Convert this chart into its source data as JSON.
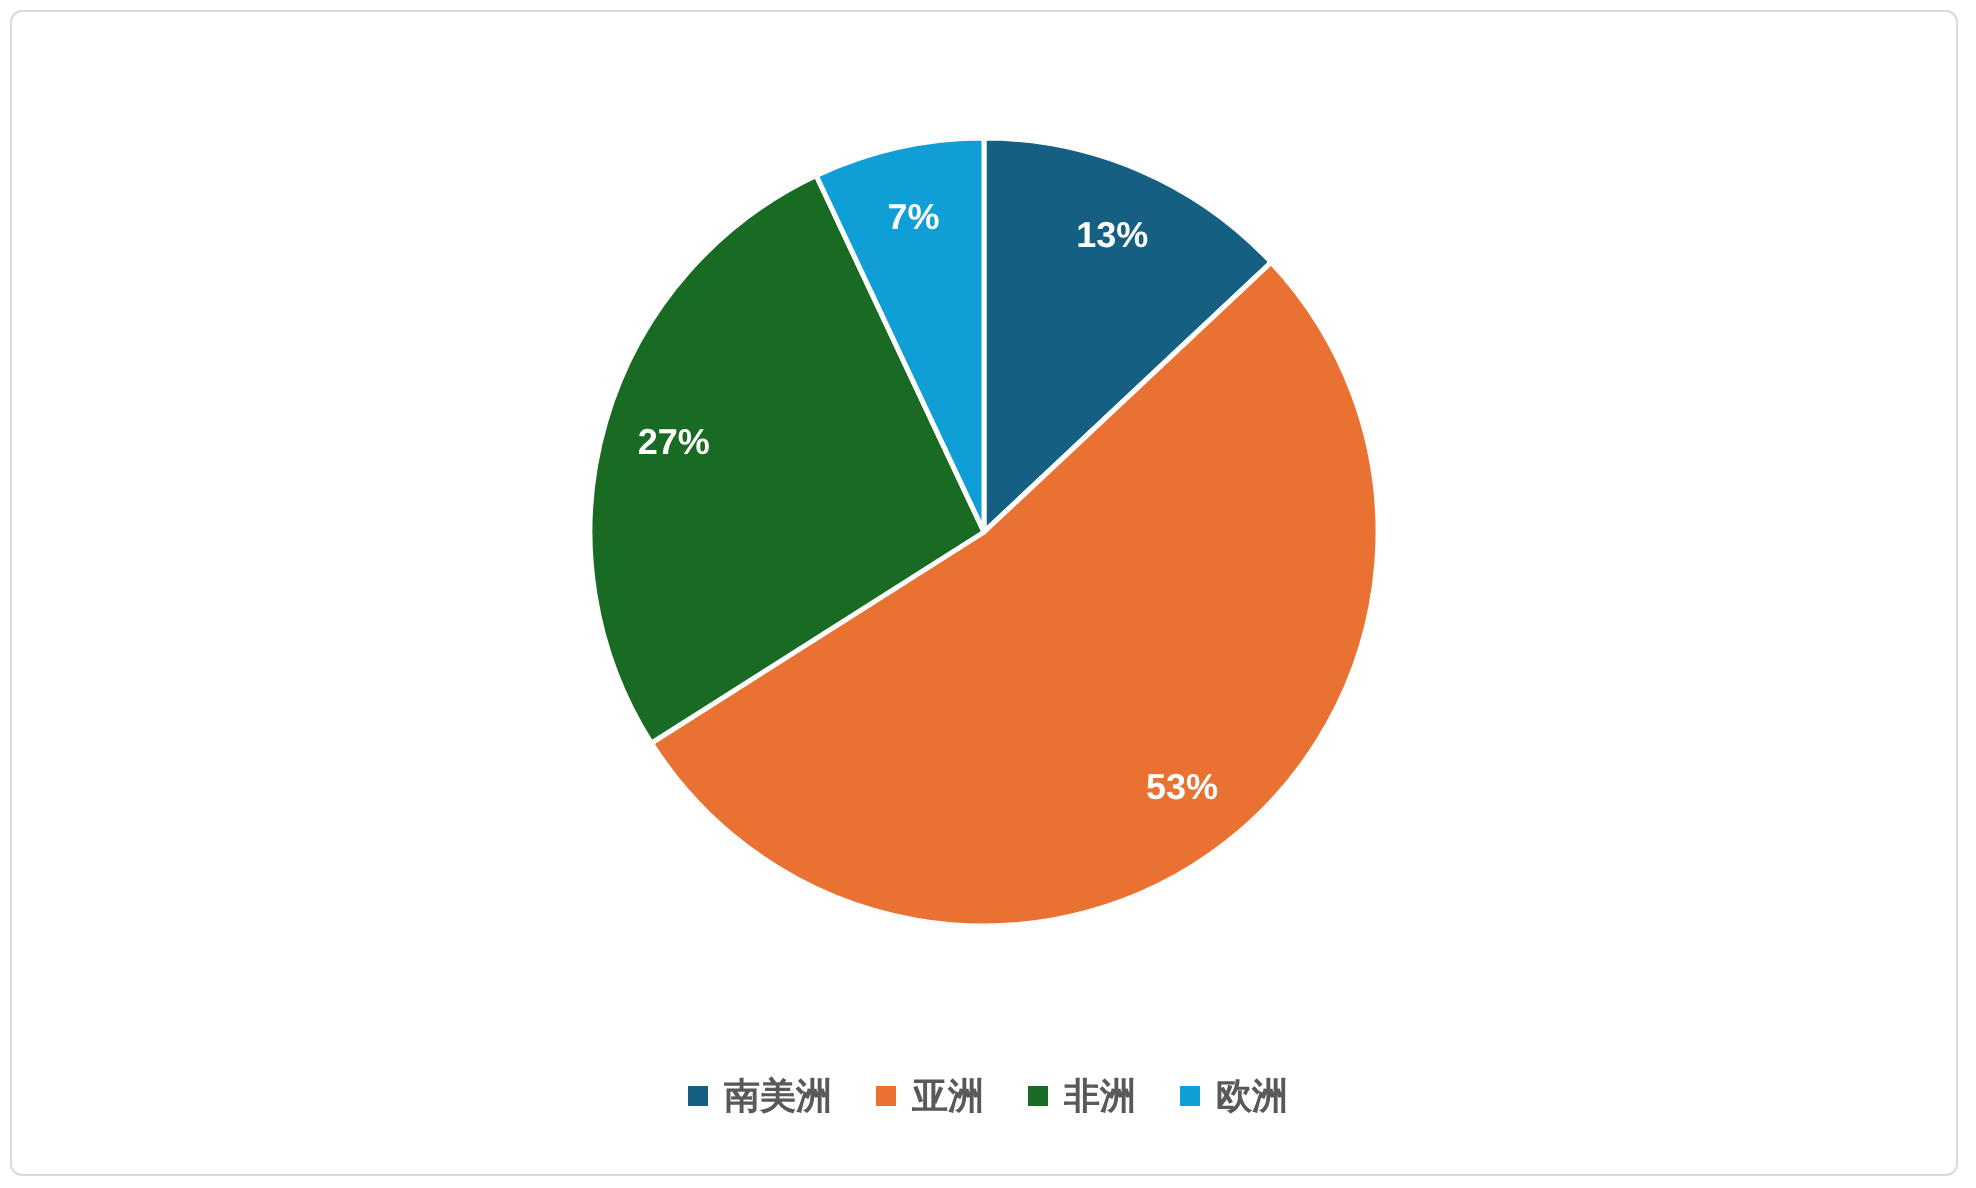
{
  "chart_data": {
    "type": "pie",
    "categories": [
      "南美洲",
      "亚洲",
      "非洲",
      "欧洲"
    ],
    "values": [
      13,
      53,
      27,
      7
    ],
    "colors": [
      "#156082",
      "#e97132",
      "#196b24",
      "#0f9ed5"
    ],
    "value_labels": [
      "13%",
      "53%",
      "27%",
      "7%"
    ],
    "legend": "bottom"
  }
}
